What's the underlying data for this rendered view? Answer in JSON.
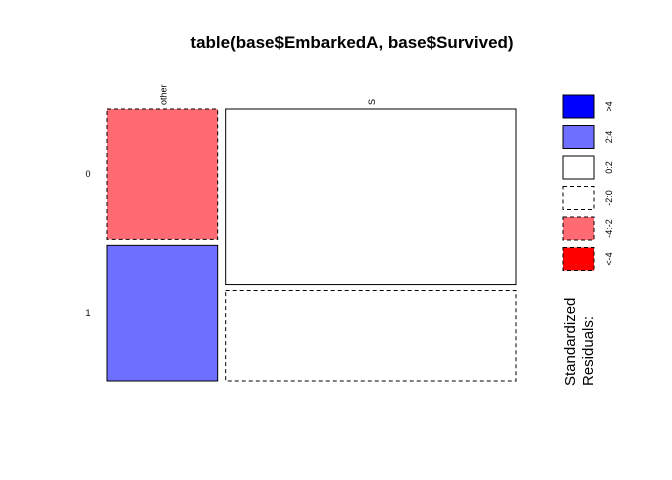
{
  "chart_data": {
    "type": "mosaic",
    "title": "table(base$EmbarkedA, base$Survived)",
    "xlabel": "",
    "ylabel": "",
    "column_categories": [
      "other",
      "S"
    ],
    "row_categories": [
      "0",
      "1"
    ],
    "column_props": [
      0.276,
      0.724
    ],
    "cells": [
      {
        "col": "other",
        "row": "0",
        "prop": 0.49,
        "residual_class": "-4:-2"
      },
      {
        "col": "other",
        "row": "1",
        "prop": 0.51,
        "residual_class": "2:4"
      },
      {
        "col": "S",
        "row": "0",
        "prop": 0.66,
        "residual_class": "0:2"
      },
      {
        "col": "S",
        "row": "1",
        "prop": 0.34,
        "residual_class": "-2:0"
      }
    ],
    "legend": {
      "title_lines": [
        "Standardized",
        "Residuals:"
      ],
      "placement": "right",
      "entries": [
        {
          "label": ">4",
          "color": "#0000ff",
          "dashed": false
        },
        {
          "label": "2:4",
          "color": "#6e6eff",
          "dashed": false
        },
        {
          "label": "0:2",
          "color": "#ffffff",
          "dashed": false
        },
        {
          "label": "-2:0",
          "color": "#ffffff",
          "dashed": true
        },
        {
          "label": "-4:-2",
          "color": "#ff6b72",
          "dashed": true
        },
        {
          "label": "<-4",
          "color": "#ff0000",
          "dashed": true
        }
      ]
    }
  }
}
